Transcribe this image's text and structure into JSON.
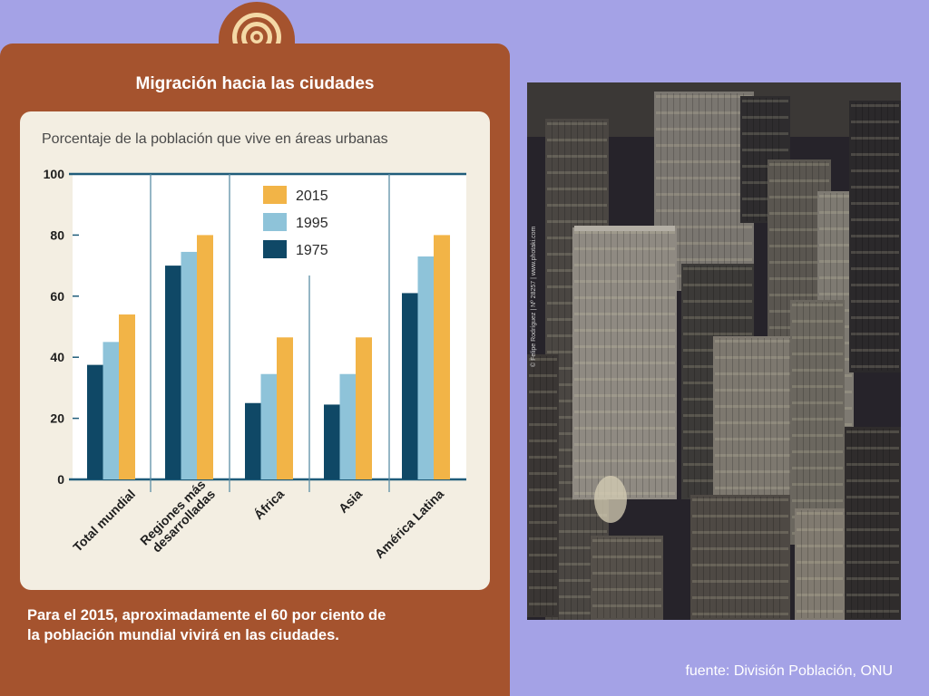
{
  "card": {
    "title": "Migración hacia las ciudades",
    "caption_line1": "Para el 2015, aproximadamente el 60 por ciento de",
    "caption_line2": "la población mundial vivirá en las ciudades.",
    "source": "fuente: División Población, ONU"
  },
  "colors": {
    "background": "#A4A2E6",
    "card": "#A5532E",
    "panel": "#F3EEE2",
    "plot": "#FFFFFF",
    "axis": "#1F5C7A",
    "s2015": "#F2B447",
    "s1995": "#8EC3D9",
    "s1975": "#0F4866"
  },
  "photo": {
    "credit": "© Felipe Rodríguez | Nº 28257 | www.photaki.com"
  },
  "chart_data": {
    "type": "bar",
    "title": "Porcentaje de la población que vive en áreas urbanas",
    "categories": [
      "Total mundial",
      "Regiones más desarrolladas",
      "África",
      "Asia",
      "América Latina"
    ],
    "category_lines": [
      [
        "Total mundial"
      ],
      [
        "Regiones más",
        "desarrolladas"
      ],
      [
        "África"
      ],
      [
        "Asia"
      ],
      [
        "América Latina"
      ]
    ],
    "series": [
      {
        "name": "1975",
        "values": [
          37.5,
          70,
          25,
          24.5,
          61
        ],
        "color": "#0F4866"
      },
      {
        "name": "1995",
        "values": [
          45,
          74.5,
          34.5,
          34.5,
          73
        ],
        "color": "#8EC3D9"
      },
      {
        "name": "2015",
        "values": [
          54,
          80,
          46.5,
          46.5,
          80
        ],
        "color": "#F2B447"
      }
    ],
    "legend_order": [
      "2015",
      "1995",
      "1975"
    ],
    "legend_position": "top-center",
    "ylim": [
      0,
      100
    ],
    "yticks": [
      0,
      20,
      40,
      60,
      80,
      100
    ],
    "xlabel": "",
    "ylabel": "",
    "grid": false
  }
}
